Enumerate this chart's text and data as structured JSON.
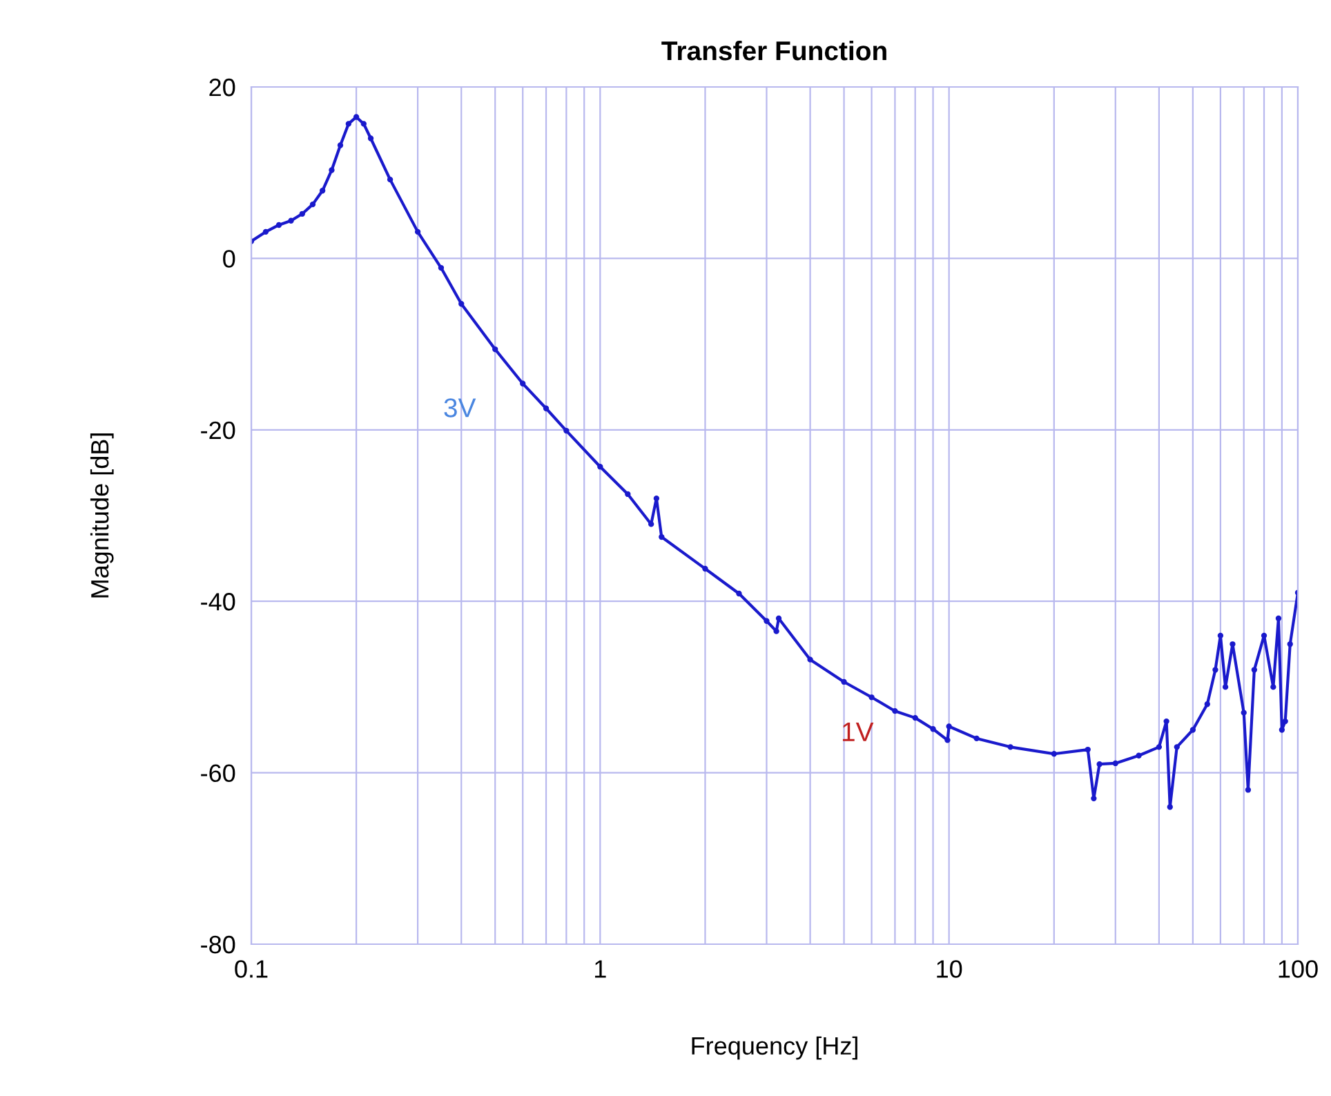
{
  "chart_data": {
    "type": "line",
    "title": "Transfer Function",
    "xlabel": "Frequency [Hz]",
    "ylabel": "Magnitude [dB]",
    "log": "x",
    "xlim": [
      0.1,
      100
    ],
    "xticks": [
      0.1,
      1,
      10,
      100
    ],
    "ylim": [
      -80,
      20
    ],
    "yticks": [
      -80,
      -60,
      -40,
      -20,
      0,
      20
    ],
    "grid": true,
    "marker": "circle",
    "line_style": "solid",
    "series": [
      {
        "color": "#1a1acc",
        "x": [
          0.1,
          0.11,
          0.12,
          0.13,
          0.14,
          0.15,
          0.16,
          0.17,
          0.18,
          0.19,
          0.2,
          0.21,
          0.22,
          0.25,
          0.3,
          0.35,
          0.4,
          0.5,
          0.6,
          0.7,
          0.8,
          1.0,
          1.2,
          1.4,
          1.45,
          1.5,
          2.0,
          2.5,
          3.0,
          3.2,
          3.25,
          4,
          5,
          6,
          7,
          8,
          9,
          9.9,
          10,
          12,
          15,
          20,
          25,
          26,
          27,
          30,
          35,
          40,
          42,
          43,
          45,
          50,
          55,
          58,
          60,
          62,
          65,
          70,
          72,
          75,
          80,
          85,
          88,
          90,
          92,
          95,
          100
        ],
        "values": [
          2,
          3.1,
          3.9,
          4.4,
          5.2,
          6.3,
          7.9,
          10.3,
          13.2,
          15.7,
          16.5,
          15.7,
          14,
          9.2,
          3.1,
          -1.1,
          -5.3,
          -10.6,
          -14.6,
          -17.5,
          -20.1,
          -24.3,
          -27.5,
          -31,
          -28,
          -32.5,
          -36.2,
          -39.1,
          -42.3,
          -43.5,
          -42,
          -46.8,
          -49.4,
          -51.2,
          -52.8,
          -53.6,
          -54.9,
          -56.2,
          -54.6,
          -56,
          -57,
          -57.8,
          -57.3,
          -63,
          -59,
          -58.9,
          -58,
          -57,
          -54,
          -64,
          -57,
          -55,
          -52,
          -48,
          -44,
          -50,
          -45,
          -53,
          -62,
          -48,
          -44,
          -50,
          -42,
          -55,
          -54,
          -45,
          -39
        ]
      }
    ],
    "annotations": [
      "3V",
      "1V"
    ]
  }
}
